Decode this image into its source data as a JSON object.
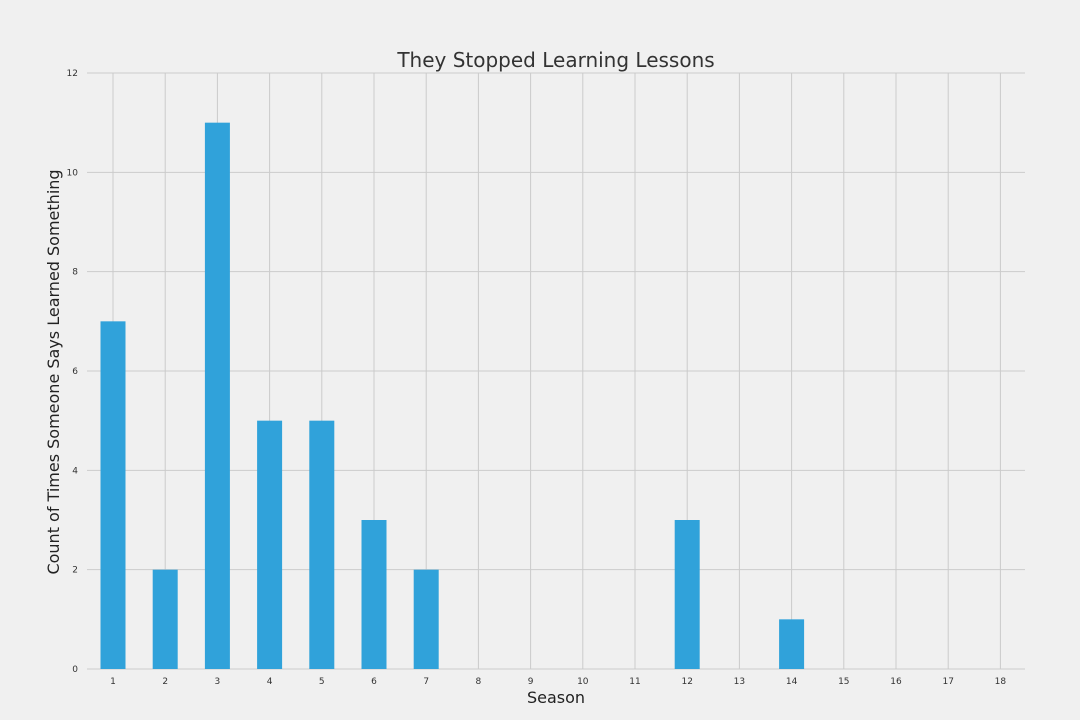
{
  "chart_data": {
    "type": "bar",
    "title": "They Stopped Learning Lessons",
    "xlabel": "Season",
    "ylabel": "Count of Times Someone Says Learned Something",
    "categories": [
      "1",
      "2",
      "3",
      "4",
      "5",
      "6",
      "7",
      "8",
      "9",
      "10",
      "11",
      "12",
      "13",
      "14",
      "15",
      "16",
      "17",
      "18"
    ],
    "values": [
      7,
      2,
      11,
      5,
      5,
      3,
      2,
      0,
      0,
      0,
      0,
      3,
      0,
      1,
      0,
      0,
      0,
      0
    ],
    "ylim": [
      0,
      12
    ],
    "yticks": [
      "0",
      "2",
      "4",
      "6",
      "8",
      "10",
      "12"
    ],
    "grid": true,
    "bar_color": "#30a2da",
    "background_color": "#f0f0f0",
    "grid_color": "#cbcbcb"
  }
}
